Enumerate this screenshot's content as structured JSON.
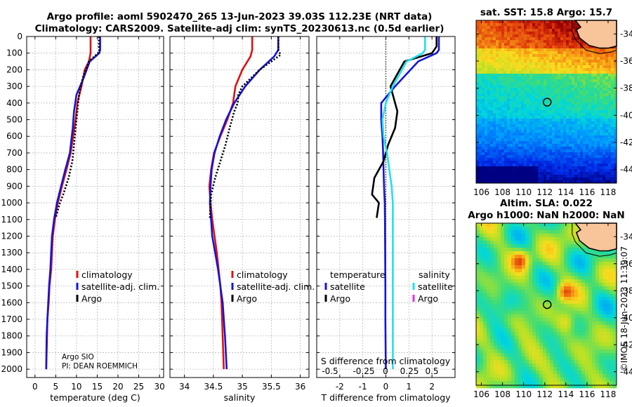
{
  "title": {
    "line1": "Argo profile: aoml 5902470_265 13-Jun-2023 39.03S 112.23E (NRT data)",
    "line2": "Climatology: CARS2009. Satellite-adj clim: synTS_20230613.nc (0.5d earlier)"
  },
  "timestamp": "©IMOS 18-Jun-2023 11:39:07",
  "credits": {
    "line1": "Argo SIO",
    "line2": "PI: DEAN ROEMMICH"
  },
  "colors": {
    "climatology": "#e01010",
    "satellite_adj": "#1414d8",
    "argo": "#000000",
    "satellite_light": "#20e0f0",
    "argo_salinity_diff": "#e030e0"
  },
  "chart_data": [
    {
      "type": "line",
      "name": "temperature",
      "xlabel": "temperature (deg C)",
      "ylabel": "",
      "xlim": [
        -2,
        31
      ],
      "ylim": [
        0,
        2050
      ],
      "xticks": [
        "0",
        "5",
        "10",
        "15",
        "20",
        "25",
        "30"
      ],
      "yticks": [
        "0",
        "100",
        "200",
        "300",
        "400",
        "500",
        "600",
        "700",
        "800",
        "900",
        "1000",
        "1100",
        "1200",
        "1300",
        "1400",
        "1500",
        "1600",
        "1700",
        "1800",
        "1900",
        "2000"
      ],
      "legend": [
        "climatology",
        "satellite-adj. clim.",
        "Argo"
      ],
      "series": [
        {
          "name": "climatology",
          "color": "#e01010",
          "dashed": false,
          "x": [
            13.4,
            13.4,
            13.0,
            12.0,
            11.2,
            10.2,
            9.8,
            9.2,
            8.6,
            7.6,
            6.5,
            5.5,
            4.8,
            4.3,
            3.9,
            3.5,
            3.3,
            3.0,
            2.9,
            2.8,
            2.7
          ],
          "y": [
            0,
            100,
            150,
            200,
            300,
            400,
            500,
            600,
            700,
            800,
            900,
            1000,
            1100,
            1200,
            1400,
            1500,
            1600,
            1700,
            1800,
            1900,
            2000
          ]
        },
        {
          "name": "satellite-adj. clim.",
          "color": "#1414d8",
          "dashed": false,
          "x": [
            15.7,
            15.7,
            15.5,
            13.2,
            11.7,
            10.0,
            9.4,
            9.1,
            8.4,
            7.3,
            6.3,
            5.3,
            4.6,
            4.1,
            3.7,
            3.4,
            3.2,
            3.0,
            2.8,
            2.7
          ],
          "y": [
            0,
            80,
            100,
            150,
            250,
            350,
            450,
            550,
            700,
            800,
            900,
            1000,
            1100,
            1200,
            1400,
            1500,
            1600,
            1700,
            1800,
            2000
          ]
        },
        {
          "name": "Argo",
          "color": "#000000",
          "dashed": true,
          "x": [
            15.4,
            15.4,
            15.5,
            15.2,
            13.0,
            11.5,
            10.6,
            10.2,
            9.8,
            9.4,
            9.0,
            8.1,
            6.8,
            6.0,
            5.0
          ],
          "y": [
            0,
            60,
            90,
            100,
            150,
            250,
            350,
            450,
            550,
            650,
            750,
            850,
            950,
            1000,
            1090
          ]
        }
      ]
    },
    {
      "type": "line",
      "name": "salinity",
      "xlabel": "salinity",
      "ylabel": "",
      "xlim": [
        33.75,
        36.15
      ],
      "ylim": [
        0,
        2050
      ],
      "xticks": [
        "34",
        "34.5",
        "35",
        "35.5",
        "36"
      ],
      "legend": [
        "climatology",
        "satellite-adj. clim.",
        "Argo"
      ],
      "series": [
        {
          "name": "climatology",
          "color": "#e01010",
          "dashed": false,
          "x": [
            35.17,
            35.17,
            35.14,
            35.0,
            34.88,
            34.84,
            34.74,
            34.62,
            34.51,
            34.46,
            34.43,
            34.45,
            34.48,
            34.52,
            34.56,
            34.59,
            34.62,
            34.64,
            34.66,
            34.68
          ],
          "y": [
            0,
            80,
            120,
            200,
            300,
            400,
            500,
            600,
            700,
            800,
            900,
            1000,
            1100,
            1200,
            1300,
            1400,
            1500,
            1600,
            1800,
            2000
          ]
        },
        {
          "name": "satellite-adj. clim.",
          "color": "#1414d8",
          "dashed": false,
          "x": [
            35.62,
            35.62,
            35.55,
            35.3,
            35.05,
            34.86,
            34.72,
            34.61,
            34.52,
            34.47,
            34.45,
            34.44,
            34.46,
            34.48,
            34.53,
            34.58,
            34.62,
            34.66,
            34.7,
            34.73
          ],
          "y": [
            0,
            80,
            120,
            200,
            300,
            400,
            500,
            600,
            700,
            800,
            900,
            1000,
            1100,
            1200,
            1300,
            1400,
            1500,
            1600,
            1800,
            2000
          ]
        },
        {
          "name": "Argo",
          "color": "#000000",
          "dashed": true,
          "x": [
            35.62,
            35.62,
            35.66,
            35.5,
            35.3,
            35.0,
            34.93,
            34.92,
            34.86,
            34.78,
            34.71,
            34.62,
            34.53,
            34.46,
            34.44
          ],
          "y": [
            0,
            80,
            110,
            150,
            200,
            300,
            350,
            400,
            450,
            550,
            650,
            750,
            850,
            950,
            1090
          ]
        }
      ]
    },
    {
      "type": "line",
      "name": "difference from climatology",
      "xlabel": "T difference from climatology",
      "top_label": "S difference from climatology",
      "xlim": [
        -3,
        3
      ],
      "ylim": [
        0,
        2050
      ],
      "xticks": [
        "-2",
        "-1",
        "0",
        "1",
        "2"
      ],
      "top_xticks": [
        "-0.5",
        "-0.25",
        "0",
        "0.25",
        "0.5"
      ],
      "legend_temperature": [
        "temperature",
        "satellite",
        "Argo"
      ],
      "legend_salinity": [
        "salinity",
        "satellite",
        "Argo"
      ],
      "series": [
        {
          "name": "T satellite",
          "color": "#1414d8",
          "dashed": false,
          "x": [
            2.3,
            2.3,
            2.2,
            1.4,
            0.4,
            -0.2,
            -0.2,
            -0.15,
            -0.12,
            -0.1,
            -0.08,
            -0.05,
            -0.04,
            -0.03,
            -0.02,
            -0.02,
            -0.01,
            0.0
          ],
          "y": [
            0,
            80,
            100,
            150,
            300,
            400,
            500,
            600,
            700,
            800,
            900,
            1000,
            1100,
            1300,
            1500,
            1700,
            1900,
            2000
          ]
        },
        {
          "name": "T Argo",
          "color": "#000000",
          "dashed": false,
          "x": [
            2.2,
            2.2,
            2.0,
            0.8,
            0.4,
            0.2,
            0.3,
            0.5,
            0.4,
            0.1,
            -0.1,
            -0.5,
            -0.6,
            -0.3,
            -0.4
          ],
          "y": [
            0,
            60,
            100,
            150,
            250,
            300,
            350,
            450,
            550,
            650,
            750,
            850,
            950,
            1000,
            1090
          ]
        },
        {
          "name": "S satellite",
          "color": "#20e0f0",
          "dashed": false,
          "x": [
            1.7,
            1.7,
            1.6,
            0.9,
            0.3,
            0.0,
            -0.15,
            -0.1,
            0.05,
            0.15,
            0.25,
            0.3,
            0.3,
            0.3,
            0.3,
            0.3,
            0.3
          ],
          "y": [
            0,
            80,
            100,
            150,
            300,
            400,
            500,
            600,
            700,
            800,
            900,
            1000,
            1100,
            1300,
            1500,
            1800,
            2000
          ]
        }
      ]
    },
    {
      "type": "heatmap",
      "name": "satellite SST map",
      "title": "sat. SST: 15.8 Argo: 15.7",
      "xlim": [
        105.5,
        118.8
      ],
      "ylim": [
        -45,
        -33
      ],
      "xticks": [
        "106",
        "108",
        "110",
        "112",
        "114",
        "116",
        "118"
      ],
      "yticks": [
        "-34",
        "-36",
        "-38",
        "-40",
        "-42",
        "-44"
      ],
      "marker": {
        "lon": 112.23,
        "lat": -39.03
      }
    },
    {
      "type": "heatmap",
      "name": "altimetry SLA map",
      "title": "Altim. SLA: 0.022",
      "subtitle": "Argo h1000: NaN h2000: NaN",
      "xlim": [
        105.5,
        118.8
      ],
      "ylim": [
        -45,
        -33
      ],
      "xticks": [
        "106",
        "108",
        "110",
        "112",
        "114",
        "116",
        "118"
      ],
      "yticks": [
        "-34",
        "-36",
        "-38",
        "-40",
        "-42",
        "-44"
      ],
      "marker": {
        "lon": 112.23,
        "lat": -39.03
      }
    }
  ]
}
